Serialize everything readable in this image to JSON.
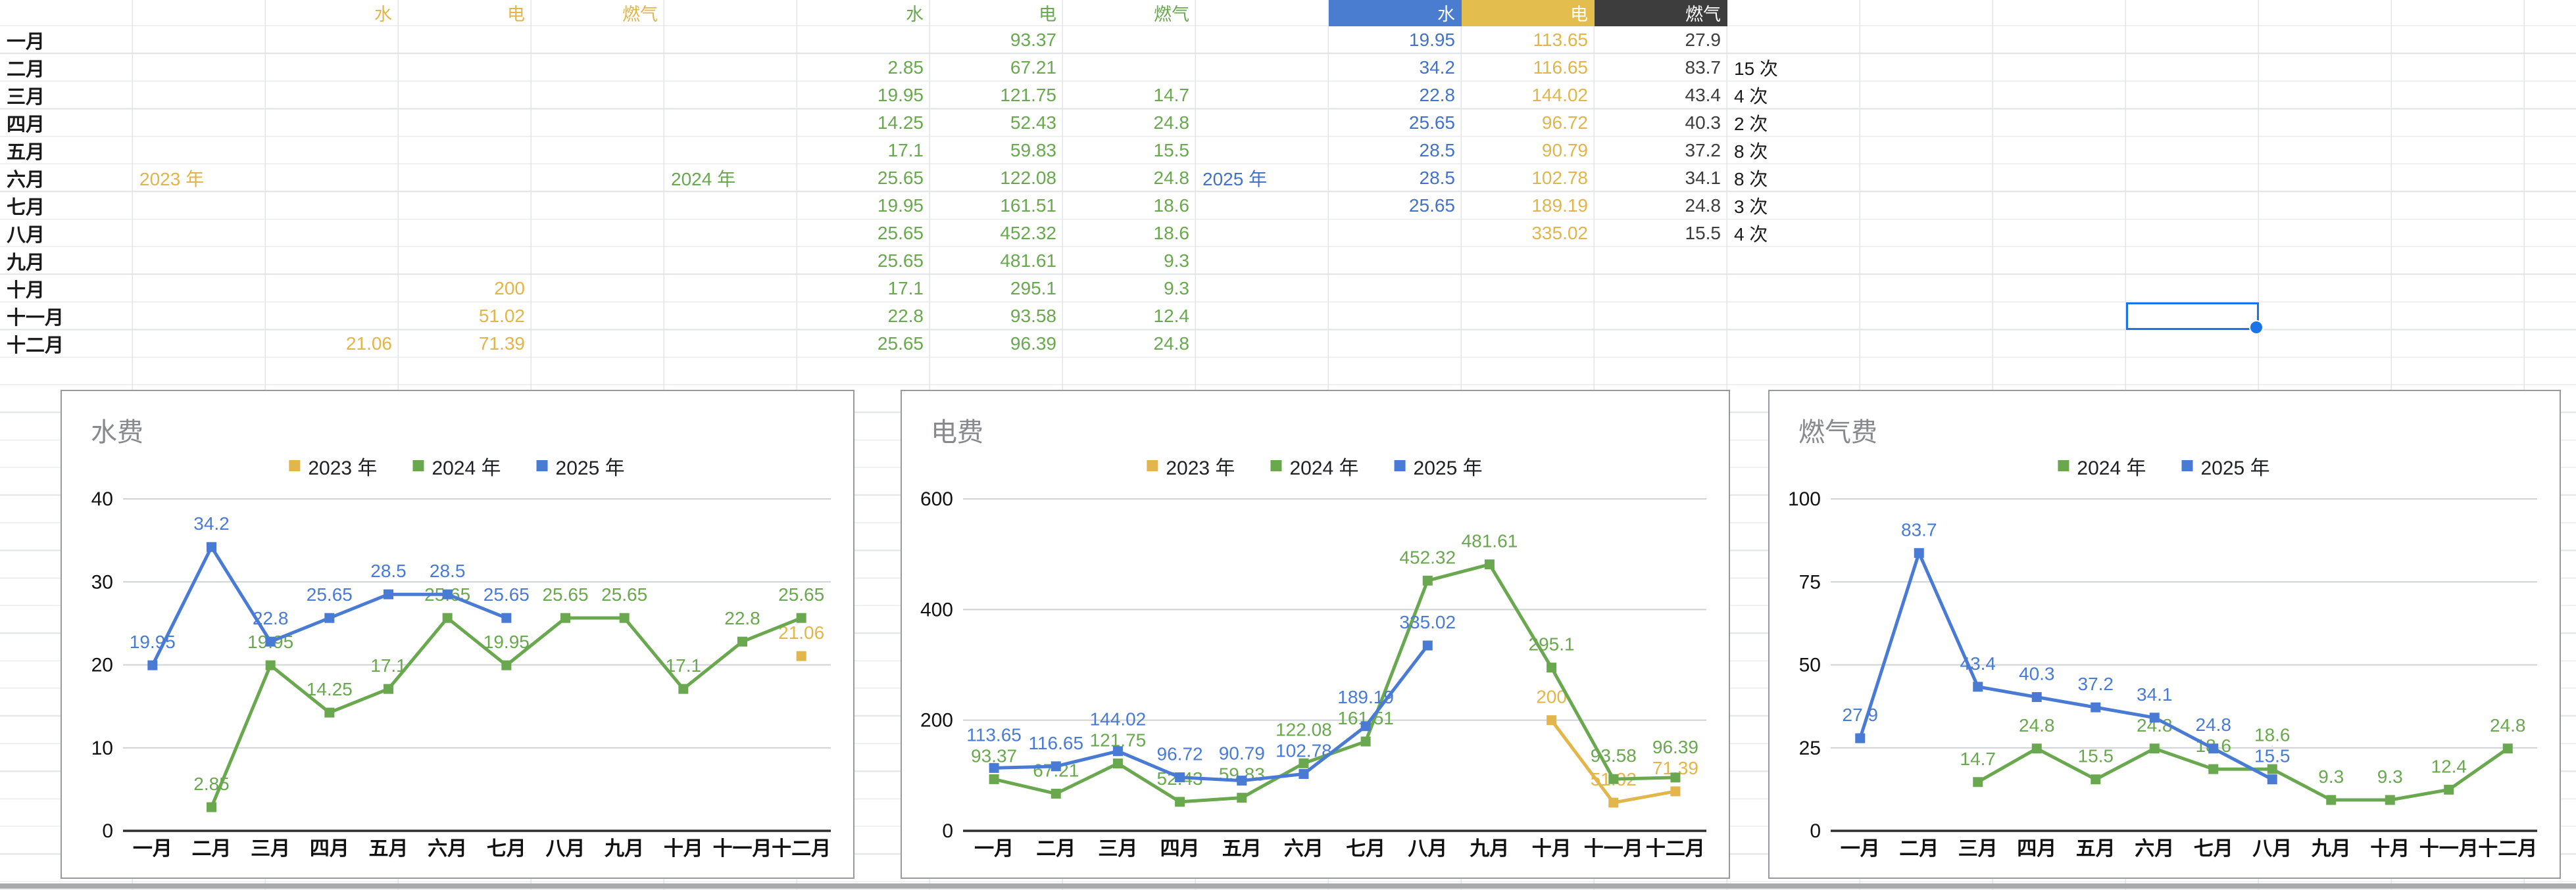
{
  "sheet": {
    "months": [
      "一月",
      "二月",
      "三月",
      "四月",
      "五月",
      "六月",
      "七月",
      "八月",
      "九月",
      "十月",
      "十一月",
      "十二月"
    ],
    "sections": [
      {
        "year_label": "2023 年",
        "accent": "#e0b64b",
        "columns": [
          {
            "label": "水",
            "values": [
              null,
              null,
              null,
              null,
              null,
              null,
              null,
              null,
              null,
              null,
              null,
              "21.06"
            ]
          },
          {
            "label": "电",
            "values": [
              null,
              null,
              null,
              null,
              null,
              null,
              null,
              null,
              null,
              "200",
              "51.02",
              "71.39"
            ]
          },
          {
            "label": "燃气",
            "values": [
              null,
              null,
              null,
              null,
              null,
              null,
              null,
              null,
              null,
              null,
              null,
              null
            ]
          }
        ]
      },
      {
        "year_label": "2024 年",
        "accent": "#6aa84f",
        "columns": [
          {
            "label": "水",
            "values": [
              null,
              "2.85",
              "19.95",
              "14.25",
              "17.1",
              "25.65",
              "19.95",
              "25.65",
              "25.65",
              "17.1",
              "22.8",
              "25.65"
            ]
          },
          {
            "label": "电",
            "values": [
              "93.37",
              "67.21",
              "121.75",
              "52.43",
              "59.83",
              "122.08",
              "161.51",
              "452.32",
              "481.61",
              "295.1",
              "93.58",
              "96.39"
            ]
          },
          {
            "label": "燃气",
            "values": [
              null,
              null,
              "14.7",
              "24.8",
              "15.5",
              "24.8",
              "18.6",
              "18.6",
              "9.3",
              "9.3",
              "12.4",
              "24.8"
            ]
          }
        ]
      },
      {
        "year_label": "2025 年",
        "accent": "#4472c8",
        "columns": [
          {
            "label": "水",
            "bg": "#4a7cd0",
            "fg": "#ffffff",
            "value_color": "#4472c8",
            "values": [
              "19.95",
              "34.2",
              "22.8",
              "25.65",
              "28.5",
              "28.5",
              "25.65",
              null,
              null,
              null,
              null,
              null
            ]
          },
          {
            "label": "电",
            "bg": "#e3bd4d",
            "fg": "#ffffff",
            "value_color": "#e0b64b",
            "values": [
              "113.65",
              "116.65",
              "144.02",
              "96.72",
              "90.79",
              "102.78",
              "189.19",
              "335.02",
              null,
              null,
              null,
              null
            ]
          },
          {
            "label": "燃气",
            "bg": "#3d3d3d",
            "fg": "#ffffff",
            "value_color": "#3d3d3d",
            "values": [
              "27.9",
              "83.7",
              "43.4",
              "40.3",
              "37.2",
              "34.1",
              "24.8",
              "15.5",
              null,
              null,
              null,
              null
            ]
          }
        ]
      }
    ],
    "counts_column": {
      "color": "#1b1b1b",
      "values": [
        null,
        "15 次",
        "4 次",
        "2 次",
        "8 次",
        "8 次",
        "3 次",
        "4 次",
        null,
        null,
        null,
        null
      ]
    }
  },
  "selection": {
    "color": "#1a73e8"
  },
  "scrollbar": {
    "track_color": "#a8aaac",
    "edge_color": "#e3e3e3"
  },
  "chart_data": [
    {
      "type": "line",
      "title": "水费",
      "categories": [
        "一月",
        "二月",
        "三月",
        "四月",
        "五月",
        "六月",
        "七月",
        "八月",
        "九月",
        "十月",
        "十一月",
        "十二月"
      ],
      "xlabel": "",
      "ylabel": "",
      "ylim": [
        0,
        40
      ],
      "yticks": [
        0,
        10,
        20,
        30,
        40
      ],
      "grid": true,
      "legend_position": "top-center",
      "series": [
        {
          "name": "2023 年",
          "color": "#e2b64a",
          "values": [
            null,
            null,
            null,
            null,
            null,
            null,
            null,
            null,
            null,
            null,
            null,
            "21.06"
          ]
        },
        {
          "name": "2024 年",
          "color": "#6aa84f",
          "values": [
            null,
            "2.85",
            "19.95",
            "14.25",
            "17.1",
            "25.65",
            "19.95",
            "25.65",
            "25.65",
            "17.1",
            "22.8",
            "25.65"
          ]
        },
        {
          "name": "2025 年",
          "color": "#4a7bd4",
          "values": [
            "19.95",
            "34.2",
            "22.8",
            "25.65",
            "28.5",
            "28.5",
            "25.65",
            null,
            null,
            null,
            null,
            null
          ]
        }
      ]
    },
    {
      "type": "line",
      "title": "电费",
      "categories": [
        "一月",
        "二月",
        "三月",
        "四月",
        "五月",
        "六月",
        "七月",
        "八月",
        "九月",
        "十月",
        "十一月",
        "十二月"
      ],
      "xlabel": "",
      "ylabel": "",
      "ylim": [
        0,
        600
      ],
      "yticks": [
        0,
        200,
        400,
        600
      ],
      "grid": true,
      "legend_position": "top-center",
      "series": [
        {
          "name": "2023 年",
          "color": "#e2b64a",
          "values": [
            null,
            null,
            null,
            null,
            null,
            null,
            null,
            null,
            null,
            "200",
            "51.02",
            "71.39"
          ]
        },
        {
          "name": "2024 年",
          "color": "#6aa84f",
          "values": [
            "93.37",
            "67.21",
            "121.75",
            "52.43",
            "59.83",
            "122.08",
            "161.51",
            "452.32",
            "481.61",
            "295.1",
            "93.58",
            "96.39"
          ]
        },
        {
          "name": "2025 年",
          "color": "#4a7bd4",
          "values": [
            "113.65",
            "116.65",
            "144.02",
            "96.72",
            "90.79",
            "102.78",
            "189.19",
            "335.02",
            null,
            null,
            null,
            null
          ]
        }
      ]
    },
    {
      "type": "line",
      "title": "燃气费",
      "categories": [
        "一月",
        "二月",
        "三月",
        "四月",
        "五月",
        "六月",
        "七月",
        "八月",
        "九月",
        "十月",
        "十一月",
        "十二月"
      ],
      "xlabel": "",
      "ylabel": "",
      "ylim": [
        0,
        100
      ],
      "yticks": [
        0,
        25,
        50,
        75,
        100
      ],
      "grid": true,
      "legend_position": "top-center",
      "series": [
        {
          "name": "2024 年",
          "color": "#6aa84f",
          "values": [
            null,
            null,
            "14.7",
            "24.8",
            "15.5",
            "24.8",
            "18.6",
            "18.6",
            "9.3",
            "9.3",
            "12.4",
            "24.8"
          ]
        },
        {
          "name": "2025 年",
          "color": "#4a7bd4",
          "values": [
            "27.9",
            "83.7",
            "43.4",
            "40.3",
            "37.2",
            "34.1",
            "24.8",
            "15.5",
            null,
            null,
            null,
            null
          ]
        }
      ]
    }
  ]
}
